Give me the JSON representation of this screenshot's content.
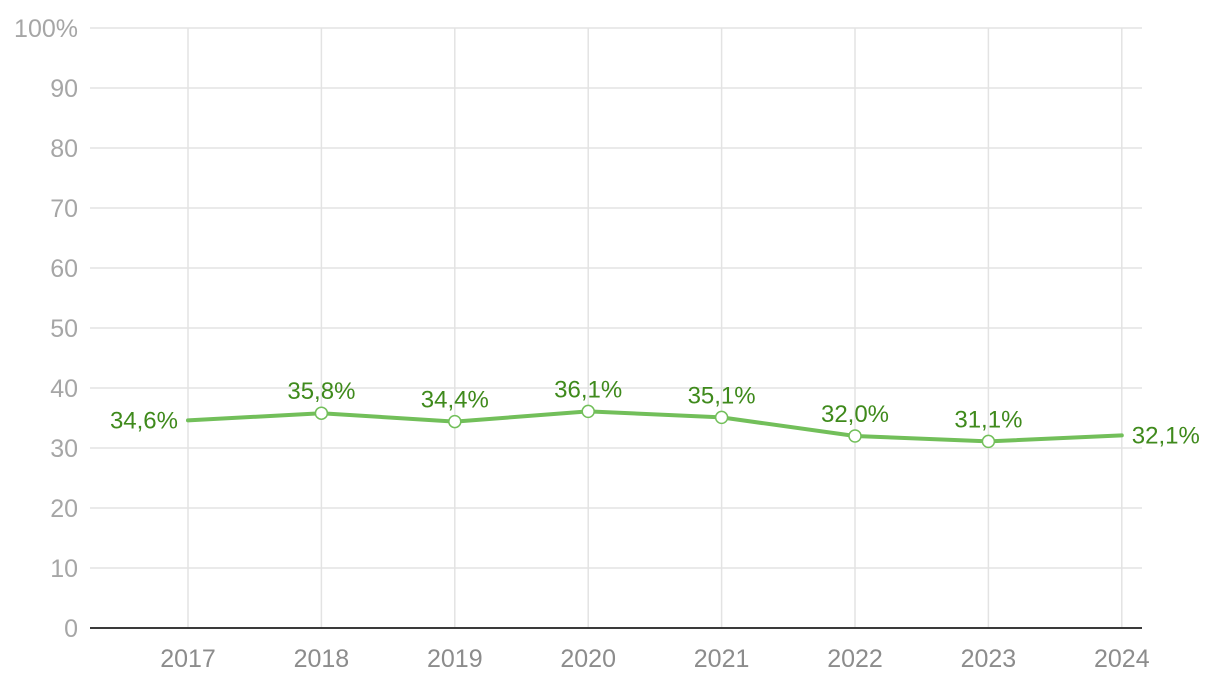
{
  "chart_data": {
    "type": "line",
    "title": "",
    "xlabel": "",
    "ylabel": "",
    "x": [
      "2017",
      "2018",
      "2019",
      "2020",
      "2021",
      "2022",
      "2023",
      "2024"
    ],
    "series": [
      {
        "values": [
          34.6,
          35.8,
          34.4,
          36.1,
          35.1,
          32.0,
          31.1,
          32.1
        ],
        "labels": [
          "34,6%",
          "35,8%",
          "34,4%",
          "36,1%",
          "35,1%",
          "32,0%",
          "31,1%",
          "32,1%"
        ],
        "color": "#72bf5a",
        "label_color": "#3f8a1c"
      }
    ],
    "ylim": [
      0,
      100
    ],
    "yticks": [
      0,
      10,
      20,
      30,
      40,
      50,
      60,
      70,
      80,
      90,
      100
    ],
    "ytick_labels": [
      "0",
      "10",
      "20",
      "30",
      "40",
      "50",
      "60",
      "70",
      "80",
      "90",
      "100%"
    ],
    "grid": true,
    "legend": "none",
    "colors": {
      "grid": "#e3e3e3",
      "axis": "#3a3a3a",
      "tick_text": "#a6a6a6",
      "x_tick_text": "#8c8c8c"
    }
  }
}
